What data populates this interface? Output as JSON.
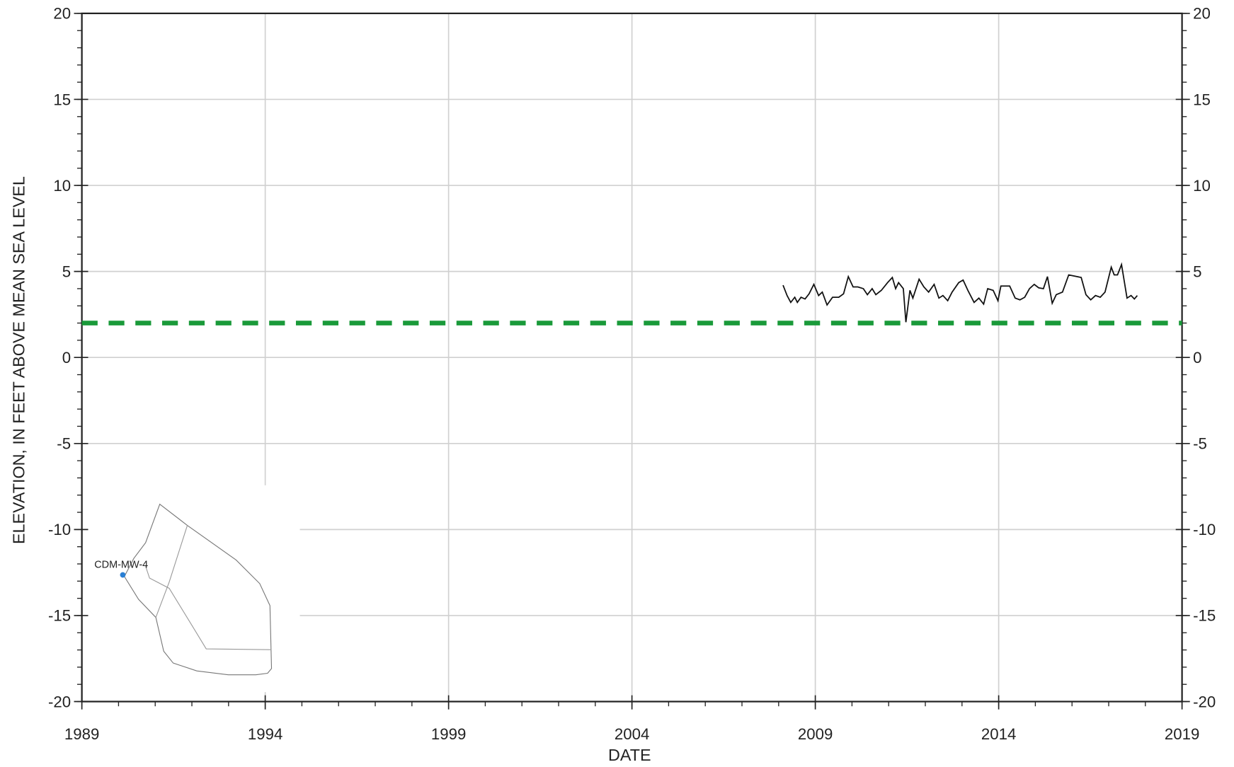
{
  "chart_data": {
    "type": "line",
    "x_label": "DATE",
    "y_label": "ELEVATION, IN FEET ABOVE MEAN SEA LEVEL",
    "xlim": [
      1989,
      2019
    ],
    "xticks": [
      1989,
      1994,
      1999,
      2004,
      2009,
      2014,
      2019
    ],
    "ylim": [
      -20,
      20
    ],
    "yticks": [
      -20,
      -15,
      -10,
      -5,
      0,
      5,
      10,
      15,
      20
    ],
    "y2lim": [
      -20,
      20
    ],
    "y2ticks": [
      -20,
      -15,
      -10,
      -5,
      0,
      5,
      10,
      15,
      20
    ],
    "grid": true,
    "x": [
      2008.12,
      2008.23,
      2008.33,
      2008.44,
      2008.51,
      2008.61,
      2008.72,
      2008.83,
      2008.96,
      2009.09,
      2009.19,
      2009.32,
      2009.47,
      2009.64,
      2009.77,
      2009.9,
      2010.03,
      2010.16,
      2010.31,
      2010.42,
      2010.55,
      2010.65,
      2010.8,
      2010.97,
      2011.1,
      2011.19,
      2011.27,
      2011.4,
      2011.47,
      2011.58,
      2011.66,
      2011.83,
      2011.96,
      2012.09,
      2012.24,
      2012.37,
      2012.48,
      2012.61,
      2012.73,
      2012.91,
      2013.03,
      2013.16,
      2013.33,
      2013.46,
      2013.59,
      2013.7,
      2013.85,
      2013.98,
      2014.06,
      2014.3,
      2014.45,
      2014.58,
      2014.71,
      2014.84,
      2014.97,
      2015.09,
      2015.22,
      2015.33,
      2015.46,
      2015.57,
      2015.74,
      2015.91,
      2016.25,
      2016.38,
      2016.51,
      2016.64,
      2016.77,
      2016.9,
      2017.07,
      2017.15,
      2017.24,
      2017.35,
      2017.5,
      2017.61,
      2017.7,
      2017.78
    ],
    "series": [
      {
        "color": "#111111",
        "values": [
          4.2,
          3.6,
          3.2,
          3.5,
          3.2,
          3.5,
          3.4,
          3.7,
          4.25,
          3.6,
          3.8,
          3.05,
          3.5,
          3.5,
          3.7,
          4.7,
          4.1,
          4.1,
          4.0,
          3.65,
          4.0,
          3.65,
          3.9,
          4.35,
          4.65,
          4.0,
          4.35,
          4.0,
          2.05,
          3.9,
          3.45,
          4.55,
          4.1,
          3.8,
          4.25,
          3.45,
          3.6,
          3.3,
          3.8,
          4.35,
          4.5,
          3.9,
          3.2,
          3.45,
          3.1,
          4.0,
          3.9,
          3.3,
          4.15,
          4.15,
          3.45,
          3.35,
          3.5,
          4.0,
          4.25,
          4.05,
          4.0,
          4.7,
          3.15,
          3.65,
          3.8,
          4.8,
          4.65,
          3.65,
          3.35,
          3.6,
          3.5,
          3.8,
          5.25,
          4.8,
          4.8,
          5.4,
          3.45,
          3.6,
          3.4,
          3.6
        ]
      }
    ],
    "reference_line": {
      "value": 2,
      "color": "#1a9a3a"
    },
    "inset": {
      "label": "CDM-MW-4",
      "color": "#2a7fd4"
    }
  }
}
